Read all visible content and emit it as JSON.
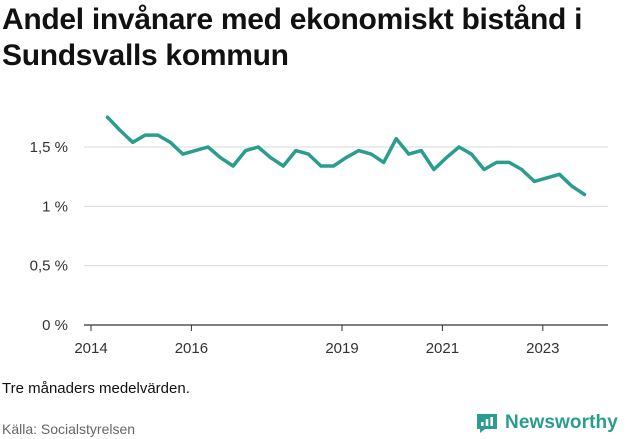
{
  "title": "Andel invånare med ekonomiskt bistånd i Sundsvalls kommun",
  "note": "Tre månaders medelvärden.",
  "source": "Källa: Socialstyrelsen",
  "brand": {
    "name": "Newsworthy",
    "icon": "newsworthy-logo-icon",
    "color": "#2a9d8f"
  },
  "chart_data": {
    "type": "line",
    "title": "Andel invånare med ekonomiskt bistånd i Sundsvalls kommun",
    "xlabel": "",
    "ylabel": "",
    "ylim": [
      0,
      1.75
    ],
    "y_ticks": [
      0,
      0.5,
      1,
      1.5
    ],
    "y_tick_labels": [
      "0 %",
      "0,5 %",
      "1 %",
      "1,5 %"
    ],
    "x_ticks": [
      2014,
      2016,
      2019,
      2021,
      2023
    ],
    "x_tick_labels": [
      "2014",
      "2016",
      "2019",
      "2021",
      "2023"
    ],
    "grid": "horizontal",
    "color": "#2a9d8f",
    "series": [
      {
        "x": [
          2014.33,
          2014.58,
          2014.83,
          2015.08,
          2015.33,
          2015.58,
          2015.83,
          2016.08,
          2016.33,
          2016.58,
          2016.83,
          2017.08,
          2017.33,
          2017.58,
          2017.83,
          2018.08,
          2018.33,
          2018.58,
          2018.83,
          2019.08,
          2019.33,
          2019.58,
          2019.83,
          2020.08,
          2020.33,
          2020.58,
          2020.83,
          2021.08,
          2021.33,
          2021.58,
          2021.83,
          2022.08,
          2022.33,
          2022.58,
          2022.83,
          2023.08,
          2023.33,
          2023.58,
          2023.83
        ],
        "values": [
          1.75,
          1.64,
          1.54,
          1.6,
          1.6,
          1.54,
          1.44,
          1.47,
          1.5,
          1.41,
          1.34,
          1.47,
          1.5,
          1.41,
          1.34,
          1.47,
          1.44,
          1.34,
          1.34,
          1.41,
          1.47,
          1.44,
          1.37,
          1.57,
          1.44,
          1.47,
          1.31,
          1.41,
          1.5,
          1.44,
          1.31,
          1.37,
          1.37,
          1.31,
          1.21,
          1.24,
          1.27,
          1.17,
          1.1
        ]
      }
    ]
  }
}
